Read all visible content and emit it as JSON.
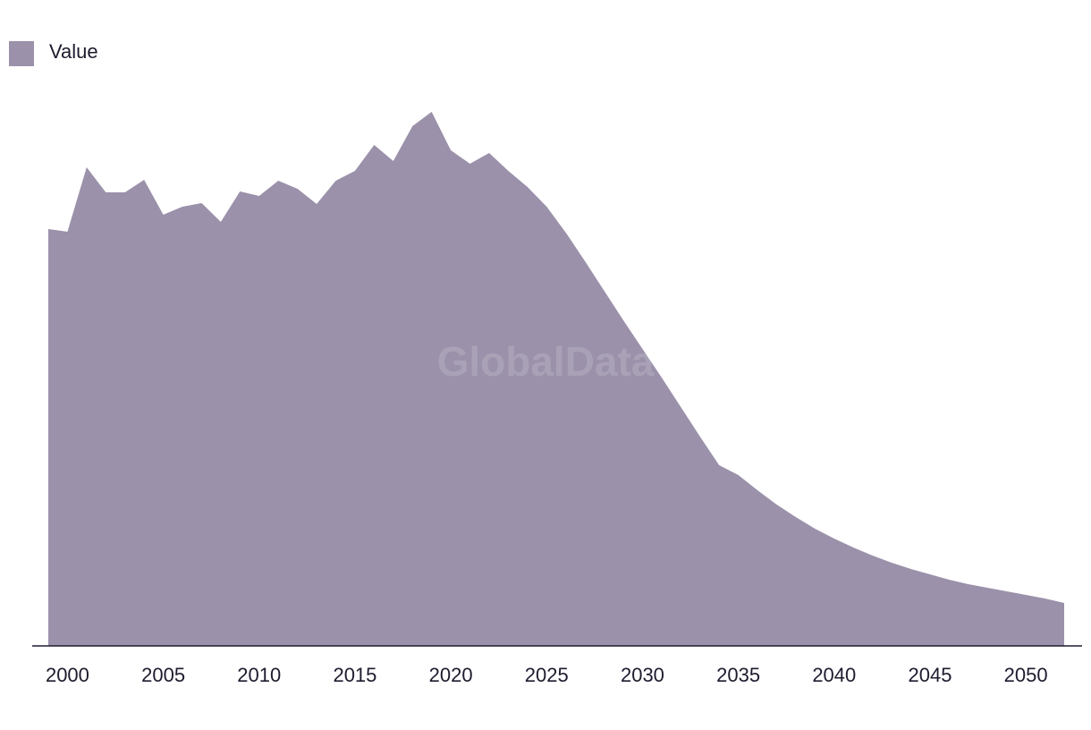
{
  "chart_data": {
    "type": "area",
    "watermark": "GlobalData",
    "x": [
      1999,
      2000,
      2001,
      2002,
      2003,
      2004,
      2005,
      2006,
      2007,
      2008,
      2009,
      2010,
      2011,
      2012,
      2013,
      2014,
      2015,
      2016,
      2017,
      2018,
      2019,
      2020,
      2021,
      2022,
      2023,
      2024,
      2025,
      2026,
      2027,
      2028,
      2029,
      2030,
      2031,
      2032,
      2033,
      2034,
      2035,
      2036,
      2037,
      2038,
      2039,
      2040,
      2041,
      2042,
      2043,
      2044,
      2045,
      2046,
      2047,
      2048,
      2049,
      2050,
      2051,
      2052
    ],
    "series": [
      {
        "name": "Value",
        "color": "#9b91aa",
        "values": [
          466,
          463,
          535,
          507,
          507,
          521,
          482,
          491,
          495,
          474,
          508,
          503,
          520,
          511,
          494,
          520,
          531,
          560,
          542,
          581,
          597,
          554,
          539,
          551,
          531,
          513,
          491,
          462,
          430,
          397,
          364,
          332,
          300,
          267,
          234,
          202,
          191,
          174,
          158,
          144,
          131,
          120,
          110,
          101,
          93,
          86,
          80,
          74,
          69,
          65,
          61,
          57,
          53,
          48
        ]
      }
    ],
    "xlim": [
      1999,
      2052
    ],
    "xticks": [
      2000,
      2005,
      2010,
      2015,
      2020,
      2025,
      2030,
      2035,
      2040,
      2045,
      2050
    ],
    "ylim": [
      0,
      650
    ],
    "legend": "top-left"
  }
}
